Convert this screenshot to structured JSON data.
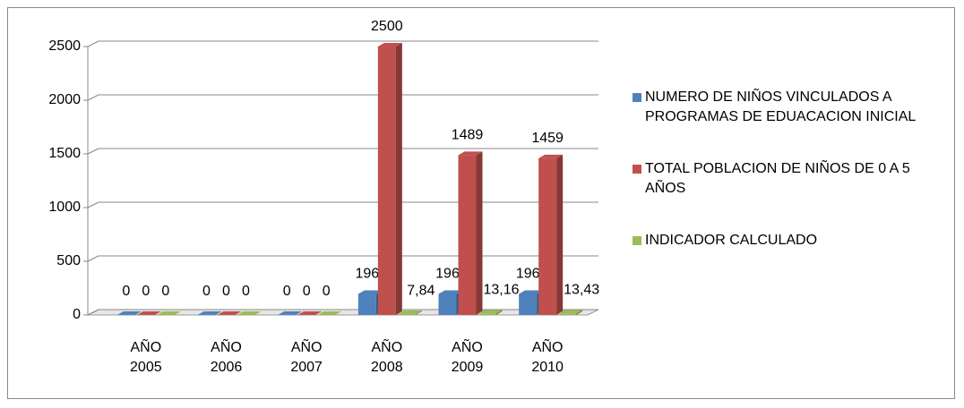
{
  "chart_data": {
    "type": "bar3d",
    "categories": [
      "AÑO 2005",
      "AÑO 2006",
      "AÑO 2007",
      "AÑO 2008",
      "AÑO 2009",
      "AÑO 2010"
    ],
    "series": [
      {
        "name": "NUMERO DE NIÑOS VINCULADOS A PROGRAMAS DE EDUACACION INICIAL",
        "color": "#4f81bd",
        "values": [
          0,
          0,
          0,
          196,
          196,
          196
        ]
      },
      {
        "name": "TOTAL POBLACION DE NIÑOS DE 0 A 5 AÑOS",
        "color": "#c0504d",
        "values": [
          0,
          0,
          0,
          2500,
          1489,
          1459
        ]
      },
      {
        "name": "INDICADOR CALCULADO",
        "color": "#9bbb59",
        "values": [
          0,
          0,
          0,
          7.84,
          13.16,
          13.43
        ],
        "value_labels": [
          "0",
          "0",
          "0",
          "7,84",
          "13,16",
          "13,43"
        ]
      }
    ],
    "ylim": [
      0,
      2500
    ],
    "yticks": [
      0,
      500,
      1000,
      1500,
      2000,
      2500
    ],
    "grid": true,
    "legend": "right"
  }
}
